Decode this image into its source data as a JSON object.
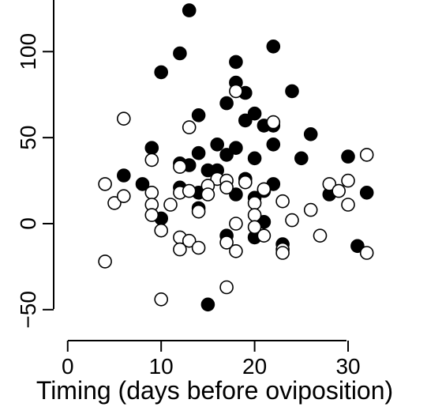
{
  "chart_data": {
    "type": "scatter",
    "title": "",
    "xlabel": "Timing (days before oviposition)",
    "ylabel": "",
    "xlim": [
      -1.5,
      36.5
    ],
    "ylim": [
      -68,
      130
    ],
    "xticks": [
      0,
      10,
      20,
      30
    ],
    "yticks": [
      -50,
      0,
      50,
      100
    ],
    "grid": false,
    "legend": "none",
    "series": [
      {
        "marker": "filled-circle",
        "color": "#000000",
        "points": [
          [
            13,
            124
          ],
          [
            22,
            103
          ],
          [
            12,
            99
          ],
          [
            18,
            94
          ],
          [
            10,
            88
          ],
          [
            18,
            82
          ],
          [
            24,
            77
          ],
          [
            19,
            76
          ],
          [
            17,
            70
          ],
          [
            14,
            63
          ],
          [
            20,
            64
          ],
          [
            19,
            60
          ],
          [
            21,
            57
          ],
          [
            22,
            57
          ],
          [
            26,
            52
          ],
          [
            16,
            46
          ],
          [
            22,
            46
          ],
          [
            9,
            44
          ],
          [
            18,
            44
          ],
          [
            17,
            40
          ],
          [
            14,
            41
          ],
          [
            20,
            38
          ],
          [
            25,
            38
          ],
          [
            30,
            39
          ],
          [
            12,
            35
          ],
          [
            13,
            34
          ],
          [
            15,
            31
          ],
          [
            16,
            31
          ],
          [
            6,
            28
          ],
          [
            19,
            26
          ],
          [
            8,
            23
          ],
          [
            22,
            23
          ],
          [
            12,
            21
          ],
          [
            14,
            18
          ],
          [
            18,
            17
          ],
          [
            28,
            17
          ],
          [
            32,
            18
          ],
          [
            20,
            15
          ],
          [
            10,
            3
          ],
          [
            21,
            1
          ],
          [
            14,
            9
          ],
          [
            17,
            -7
          ],
          [
            20,
            -8
          ],
          [
            23,
            -12
          ],
          [
            31,
            -13
          ],
          [
            15,
            -47
          ],
          [
            21,
            19
          ]
        ]
      },
      {
        "marker": "open-circle",
        "color": "#000000",
        "points": [
          [
            6,
            61
          ],
          [
            18,
            77
          ],
          [
            13,
            56
          ],
          [
            22,
            59
          ],
          [
            9,
            37
          ],
          [
            12,
            33
          ],
          [
            32,
            40
          ],
          [
            16,
            26
          ],
          [
            17,
            25
          ],
          [
            19,
            24
          ],
          [
            4,
            23
          ],
          [
            17,
            21
          ],
          [
            15,
            22
          ],
          [
            21,
            20
          ],
          [
            28,
            23
          ],
          [
            30,
            25
          ],
          [
            9,
            18
          ],
          [
            12,
            18
          ],
          [
            13,
            19
          ],
          [
            15,
            17
          ],
          [
            29,
            19
          ],
          [
            5,
            12
          ],
          [
            6,
            16
          ],
          [
            9,
            11
          ],
          [
            11,
            11
          ],
          [
            23,
            13
          ],
          [
            20,
            12
          ],
          [
            30,
            11
          ],
          [
            14,
            7
          ],
          [
            26,
            8
          ],
          [
            9,
            5
          ],
          [
            20,
            5
          ],
          [
            10,
            -4
          ],
          [
            18,
            0
          ],
          [
            24,
            2
          ],
          [
            20,
            -2
          ],
          [
            21,
            -7
          ],
          [
            17,
            -11
          ],
          [
            12,
            -8
          ],
          [
            13,
            -10
          ],
          [
            27,
            -7
          ],
          [
            14,
            -14
          ],
          [
            12,
            -15
          ],
          [
            18,
            -16
          ],
          [
            23,
            -15
          ],
          [
            32,
            -17
          ],
          [
            4,
            -22
          ],
          [
            17,
            -37
          ],
          [
            10,
            -44
          ],
          [
            23,
            -17
          ]
        ]
      }
    ]
  }
}
